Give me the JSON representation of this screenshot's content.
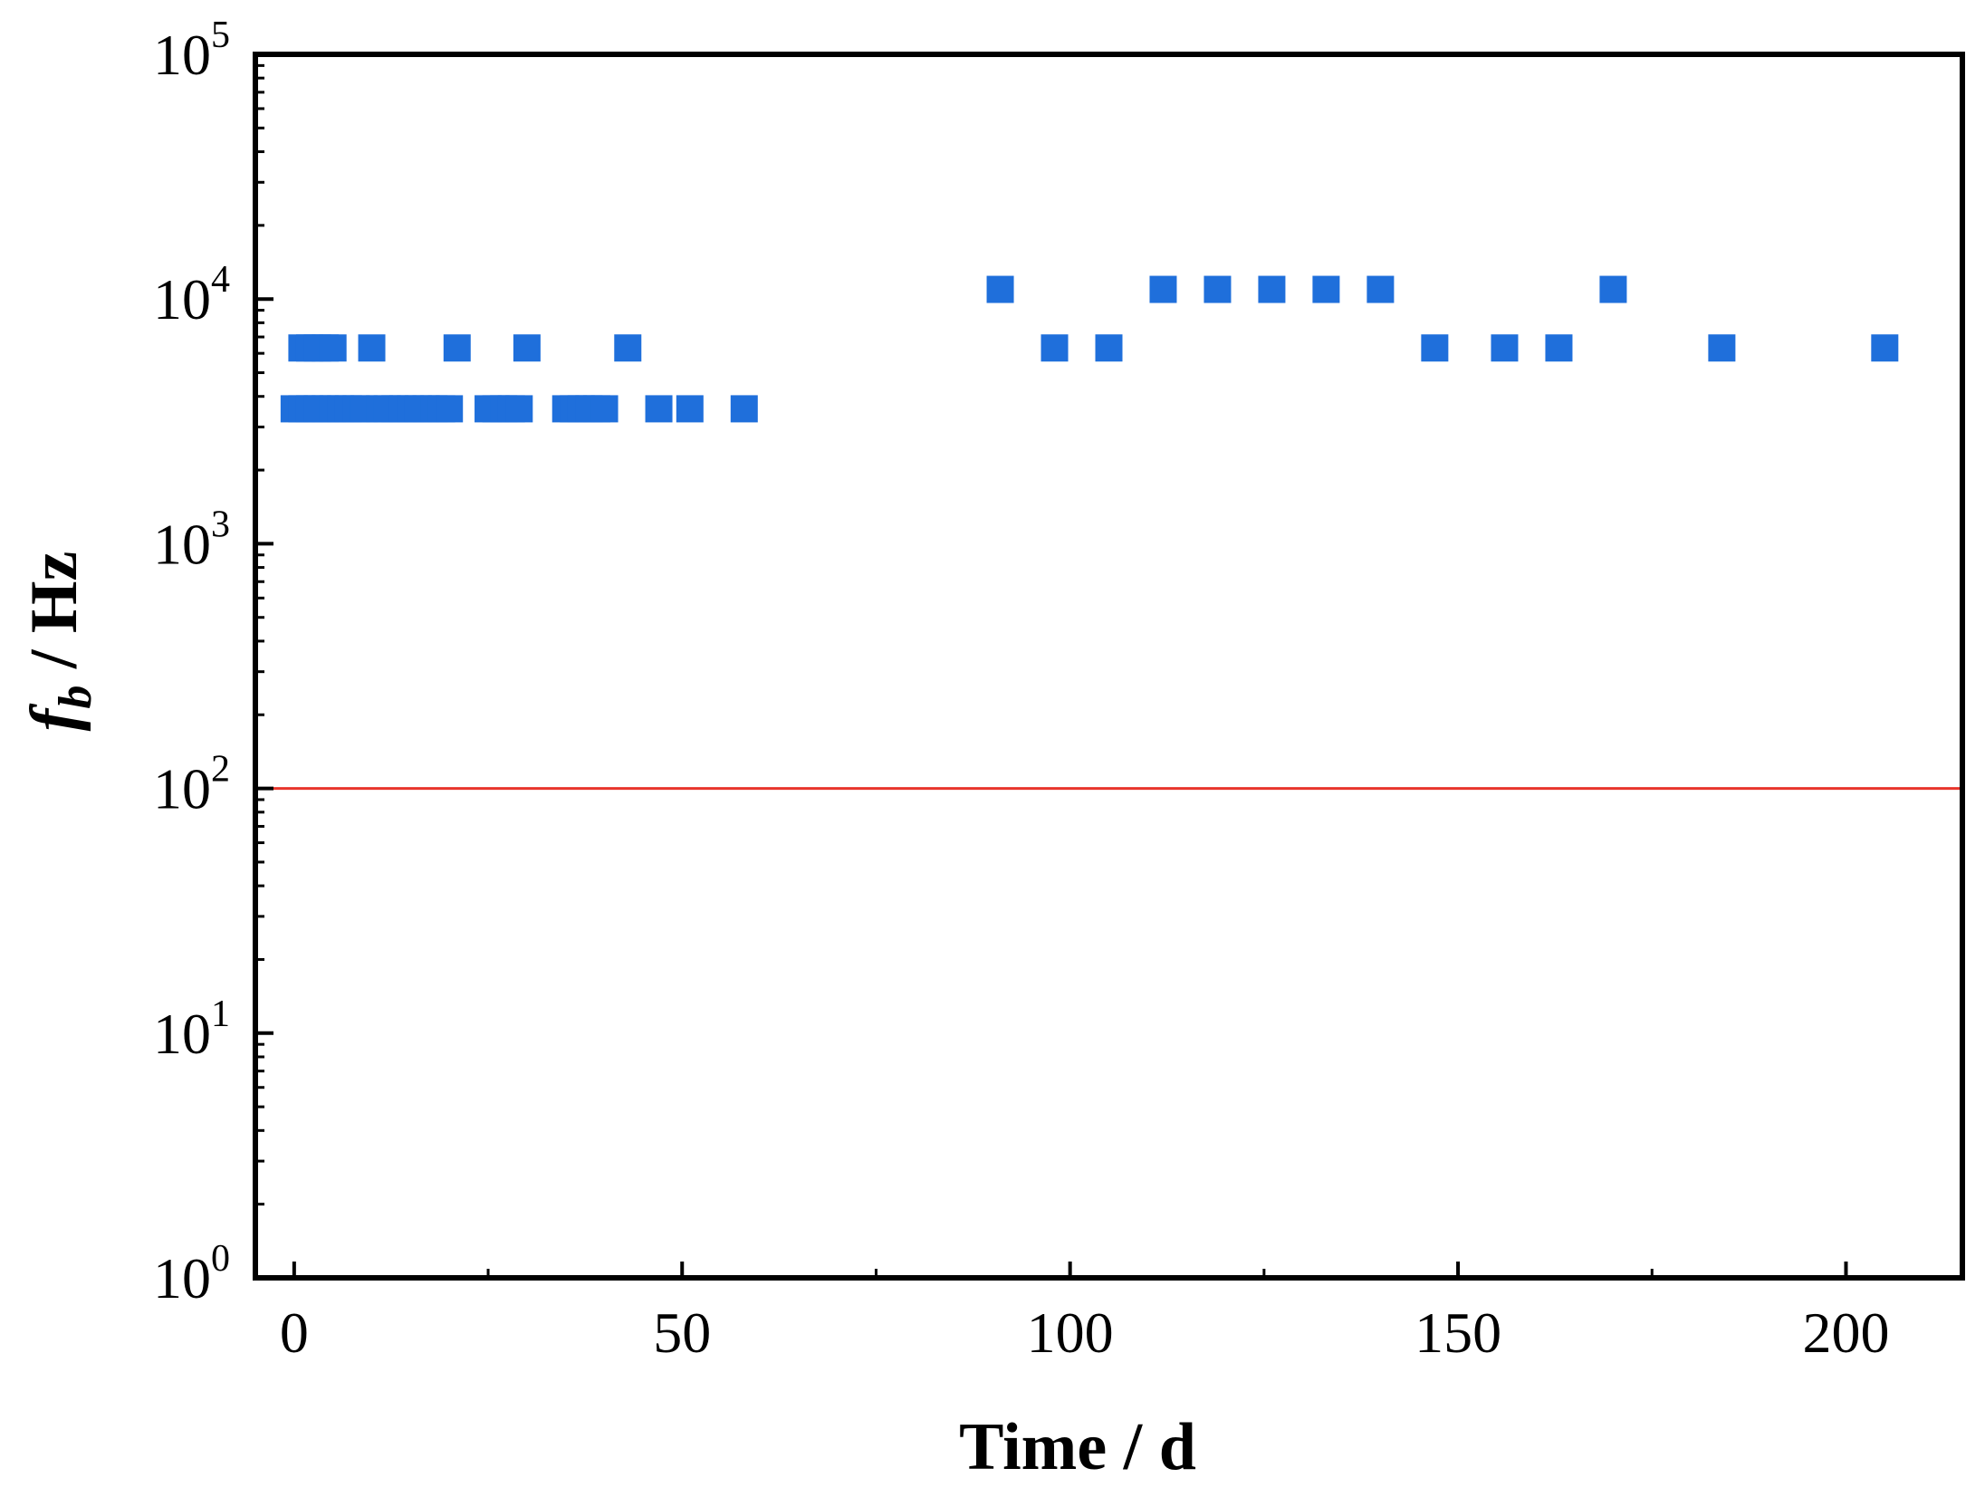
{
  "chart_data": {
    "type": "scatter",
    "xlabel": "Time / d",
    "ylabel": {
      "base": "f",
      "subscript": "b",
      "rest": " / Hz"
    },
    "xlim": [
      -5,
      215
    ],
    "ylim": [
      1,
      100000
    ],
    "yscale": "log",
    "x_ticks": [
      0,
      50,
      100,
      150,
      200
    ],
    "x_tick_labels": [
      "0",
      "50",
      "100",
      "150",
      "200"
    ],
    "y_ticks": [
      1,
      10,
      100,
      1000,
      10000,
      100000
    ],
    "y_tick_labels": [
      {
        "base": "10",
        "exp": "0"
      },
      {
        "base": "10",
        "exp": "1"
      },
      {
        "base": "10",
        "exp": "2"
      },
      {
        "base": "10",
        "exp": "3"
      },
      {
        "base": "10",
        "exp": "4"
      },
      {
        "base": "10",
        "exp": "5"
      }
    ],
    "reference_line": {
      "y": 100,
      "color": "#e8352b"
    },
    "marker": "square",
    "marker_color": "#1f6fdb",
    "grid": false,
    "legend": false,
    "series": [
      {
        "points": [
          [
            0,
            3560
          ],
          [
            1,
            3560
          ],
          [
            2,
            3560
          ],
          [
            3,
            3560
          ],
          [
            4,
            3560
          ],
          [
            5,
            3560
          ],
          [
            6,
            3560
          ],
          [
            7,
            3560
          ],
          [
            8,
            3560
          ],
          [
            9,
            3560
          ],
          [
            11,
            3560
          ],
          [
            12,
            3560
          ],
          [
            13,
            3560
          ],
          [
            14,
            3560
          ],
          [
            15,
            3560
          ],
          [
            16,
            3560
          ],
          [
            17,
            3560
          ],
          [
            18,
            3560
          ],
          [
            19,
            3560
          ],
          [
            20,
            3560
          ],
          [
            25,
            3560
          ],
          [
            26,
            3560
          ],
          [
            27,
            3560
          ],
          [
            28,
            3560
          ],
          [
            29,
            3560
          ],
          [
            35,
            3560
          ],
          [
            36,
            3560
          ],
          [
            37,
            3560
          ],
          [
            38,
            3560
          ],
          [
            39,
            3560
          ],
          [
            40,
            3560
          ],
          [
            47,
            3560
          ],
          [
            51,
            3560
          ],
          [
            58,
            3560
          ],
          [
            1,
            6310
          ],
          [
            2,
            6310
          ],
          [
            3,
            6310
          ],
          [
            4,
            6310
          ],
          [
            5,
            6310
          ],
          [
            10,
            6310
          ],
          [
            21,
            6310
          ],
          [
            30,
            6310
          ],
          [
            43,
            6310
          ],
          [
            98,
            6310
          ],
          [
            105,
            6310
          ],
          [
            147,
            6310
          ],
          [
            156,
            6310
          ],
          [
            163,
            6310
          ],
          [
            184,
            6310
          ],
          [
            205,
            6310
          ],
          [
            91,
            10950
          ],
          [
            112,
            10950
          ],
          [
            119,
            10950
          ],
          [
            126,
            10950
          ],
          [
            133,
            10950
          ],
          [
            140,
            10950
          ],
          [
            170,
            10950
          ]
        ]
      }
    ]
  }
}
